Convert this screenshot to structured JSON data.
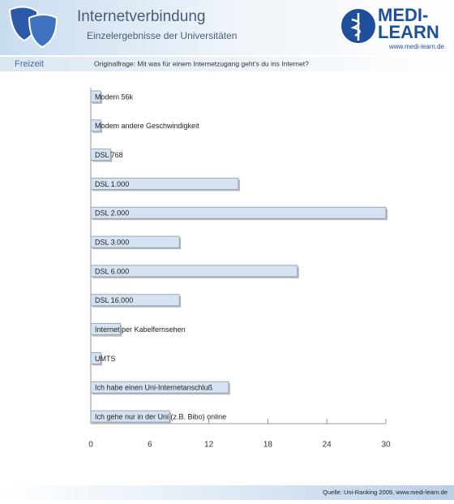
{
  "header": {
    "title": "Internetverbindung",
    "subtitle": "Einzelergebnisse der Universitäten",
    "logo_top": "MEDI-",
    "logo_bottom": "LEARN",
    "logo_url": "www.medi-learn.de"
  },
  "section": "Freizeit",
  "question": "Originalfrage: Mit was für einem Internetzugang geht's du ins Internet?",
  "source": "Quelle: Uni-Ranking 2009, www.medi-learn.de",
  "chart_data": {
    "type": "hbar",
    "categories": [
      "Modem 56k",
      "Modem andere Geschwindigkeit",
      "DSL 768",
      "DSL 1.000",
      "DSL 2.000",
      "DSL 3.000",
      "DSL 6.000",
      "DSL 16.000",
      "Internet per Kabelfernsehen",
      "UMTS",
      "Ich habe einen Uni-Internetanschluß",
      "Ich gehe nur in der Uni (z.B. Bibo) online"
    ],
    "values": [
      1,
      1,
      2,
      15,
      30,
      9,
      21,
      9,
      3,
      1,
      14,
      8
    ],
    "color": "#d5e2f1",
    "xlim": [
      0,
      30
    ],
    "xticks": [
      0,
      6,
      12,
      18,
      24,
      30
    ]
  }
}
